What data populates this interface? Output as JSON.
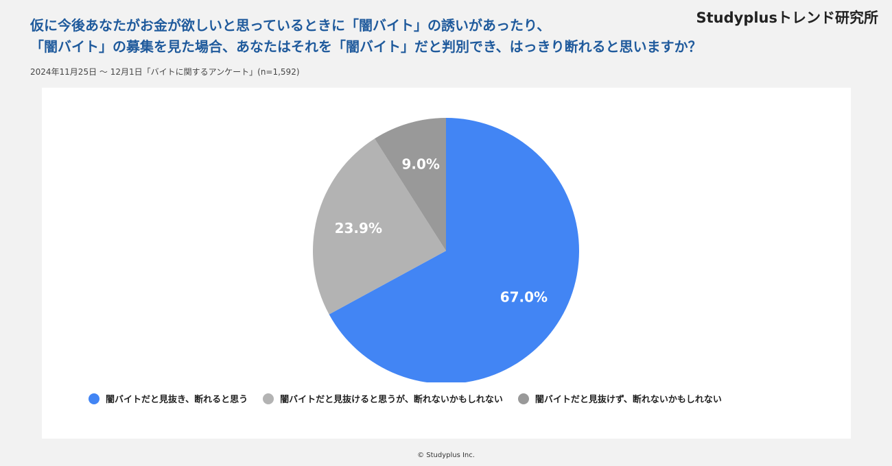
{
  "header": {
    "title_line_1": "仮に今後あなたがお金が欲しいと思っているときに「闇バイト」の誘いがあったり、",
    "title_line_2": "「闇バイト」の募集を見た場合、あなたはそれを「闇バイト」だと判別でき、はっきり断れると思いますか？",
    "brand": "Studyplusトレンド研究所",
    "subtitle": "2024年11月25日 〜 12月1日「バイトに関するアンケート」(n=1,592)"
  },
  "footer": {
    "copyright": "© Studyplus Inc."
  },
  "chart_data": {
    "type": "pie",
    "title": "仮に今後あなたがお金が欲しいと思っているときに「闇バイト」の誘いがあったり、「闇バイト」の募集を見た場合、あなたはそれを「闇バイト」だと判別でき、はっきり断れると思いますか？",
    "legend_position": "bottom",
    "start_angle": "12 o'clock",
    "direction": "clockwise",
    "slices": [
      {
        "label": "闇バイトだと見抜き、断れると思う",
        "value": 67.0,
        "display": "67.0%",
        "color": "#4285f4"
      },
      {
        "label": "闇バイトだと見抜けると思うが、断れないかもしれない",
        "value": 23.9,
        "display": "23.9%",
        "color": "#b3b3b3"
      },
      {
        "label": "闇バイトだと見抜けず、断れないかもしれない",
        "value": 9.0,
        "display": "9.0%",
        "color": "#999999"
      }
    ]
  }
}
